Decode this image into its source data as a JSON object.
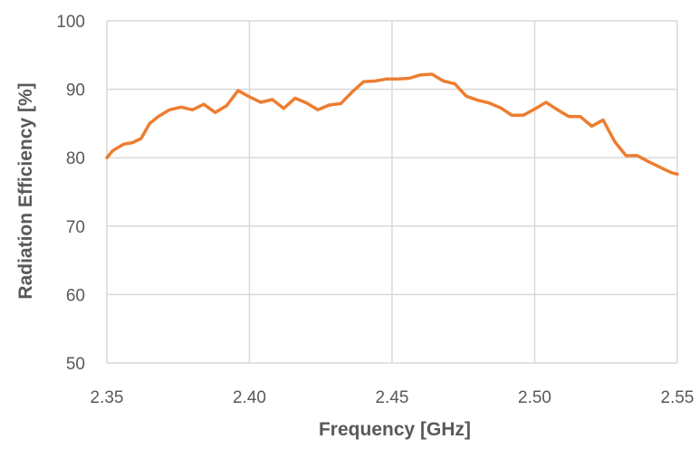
{
  "chart_data": {
    "type": "line",
    "title": "",
    "xlabel": "Frequency [GHz]",
    "ylabel": "Radiation Efficiency [%]",
    "xlim": [
      2.35,
      2.55
    ],
    "ylim": [
      50,
      100
    ],
    "x_ticks": [
      "2.35",
      "2.40",
      "2.45",
      "2.50",
      "2.55"
    ],
    "y_ticks": [
      "50",
      "60",
      "70",
      "80",
      "90",
      "100"
    ],
    "grid": true,
    "legend": "none",
    "series": [
      {
        "color": "#ED7D31",
        "x": [
          2.35,
          2.352,
          2.356,
          2.359,
          2.362,
          2.365,
          2.368,
          2.372,
          2.376,
          2.38,
          2.384,
          2.388,
          2.392,
          2.396,
          2.4,
          2.404,
          2.408,
          2.412,
          2.416,
          2.42,
          2.424,
          2.428,
          2.432,
          2.436,
          2.44,
          2.444,
          2.448,
          2.452,
          2.456,
          2.46,
          2.464,
          2.468,
          2.472,
          2.476,
          2.48,
          2.484,
          2.488,
          2.492,
          2.496,
          2.5,
          2.504,
          2.508,
          2.512,
          2.516,
          2.52,
          2.524,
          2.528,
          2.532,
          2.536,
          2.54,
          2.544,
          2.548,
          2.55
        ],
        "y": [
          80.0,
          81.0,
          82.0,
          82.2,
          82.8,
          85.0,
          86.0,
          87.0,
          87.4,
          87.0,
          87.8,
          86.6,
          87.6,
          89.8,
          88.9,
          88.1,
          88.5,
          87.2,
          88.7,
          88.0,
          87.0,
          87.7,
          87.9,
          89.6,
          91.1,
          91.2,
          91.5,
          91.5,
          91.6,
          92.1,
          92.2,
          91.2,
          90.8,
          89.0,
          88.4,
          88.0,
          87.3,
          86.2,
          86.2,
          87.1,
          88.1,
          87.0,
          86.0,
          86.0,
          84.6,
          85.5,
          82.4,
          80.3,
          80.3,
          79.4,
          78.6,
          77.8,
          77.6
        ]
      }
    ]
  }
}
